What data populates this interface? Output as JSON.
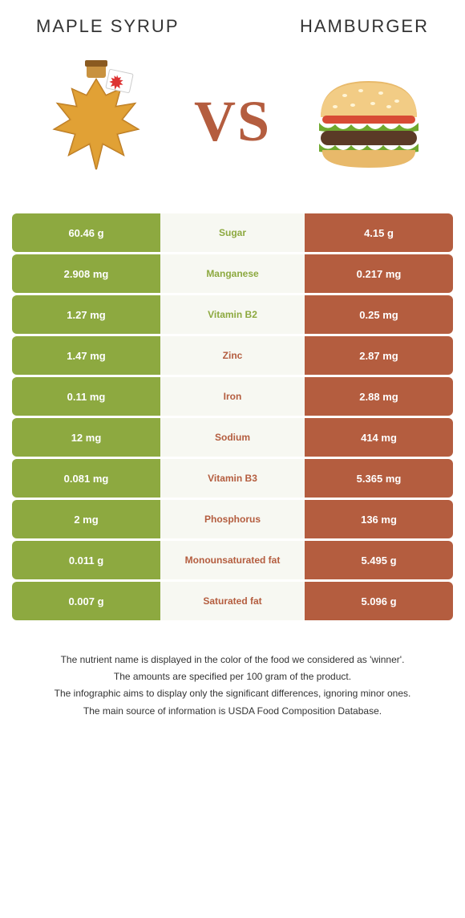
{
  "colors": {
    "food1": "#8da940",
    "food2": "#b45d3f",
    "mid_bg": "#f7f8f2"
  },
  "header": {
    "food1_title": "Maple syrup",
    "food2_title": "Hamburger",
    "vs": "VS"
  },
  "rows": [
    {
      "left": "60.46 g",
      "label": "Sugar",
      "right": "4.15 g",
      "winner": 1
    },
    {
      "left": "2.908 mg",
      "label": "Manganese",
      "right": "0.217 mg",
      "winner": 1
    },
    {
      "left": "1.27 mg",
      "label": "Vitamin B2",
      "right": "0.25 mg",
      "winner": 1
    },
    {
      "left": "1.47 mg",
      "label": "Zinc",
      "right": "2.87 mg",
      "winner": 2
    },
    {
      "left": "0.11 mg",
      "label": "Iron",
      "right": "2.88 mg",
      "winner": 2
    },
    {
      "left": "12 mg",
      "label": "Sodium",
      "right": "414 mg",
      "winner": 2
    },
    {
      "left": "0.081 mg",
      "label": "Vitamin B3",
      "right": "5.365 mg",
      "winner": 2
    },
    {
      "left": "2 mg",
      "label": "Phosphorus",
      "right": "136 mg",
      "winner": 2
    },
    {
      "left": "0.011 g",
      "label": "Monounsaturated fat",
      "right": "5.495 g",
      "winner": 2
    },
    {
      "left": "0.007 g",
      "label": "Saturated fat",
      "right": "5.096 g",
      "winner": 2
    }
  ],
  "footer": {
    "line1": "The nutrient name is displayed in the color of the food we considered as 'winner'.",
    "line2": "The amounts are specified per 100 gram of the product.",
    "line3": "The infographic aims to display only the significant differences, ignoring minor ones.",
    "line4": "The main source of information is USDA Food Composition Database."
  }
}
